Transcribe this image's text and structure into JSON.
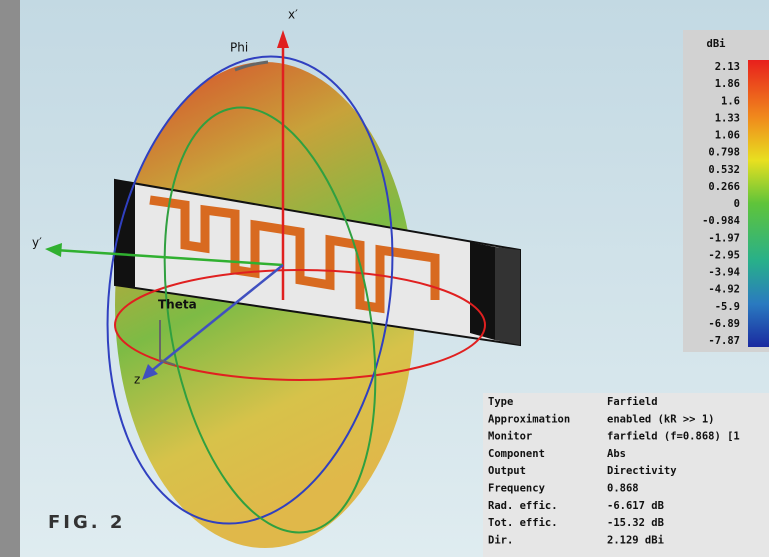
{
  "axes": {
    "x": "x′",
    "y": "y′",
    "z": "z",
    "phi": "Phi",
    "theta": "Theta"
  },
  "colorbar": {
    "unit": "dBi",
    "labels": [
      "2.13",
      "1.86",
      "1.6",
      "1.33",
      "1.06",
      "0.798",
      "0.532",
      "0.266",
      "0",
      "-0.984",
      "-1.97",
      "-2.95",
      "-3.94",
      "-4.92",
      "-5.9",
      "-6.89",
      "-7.87"
    ]
  },
  "info": {
    "rows": [
      [
        "Type",
        "Farfield"
      ],
      [
        "Approximation",
        "enabled (kR >> 1)"
      ],
      [
        "Monitor",
        "farfield (f=0.868) [1"
      ],
      [
        "Component",
        "Abs"
      ],
      [
        "Output",
        "Directivity"
      ],
      [
        "Frequency",
        "0.868"
      ],
      [
        "Rad. effic.",
        "-6.617 dB"
      ],
      [
        "Tot. effic.",
        "-15.32 dB"
      ],
      [
        "Dir.",
        "2.129 dBi"
      ]
    ]
  },
  "figure_label": "FIG. 2"
}
